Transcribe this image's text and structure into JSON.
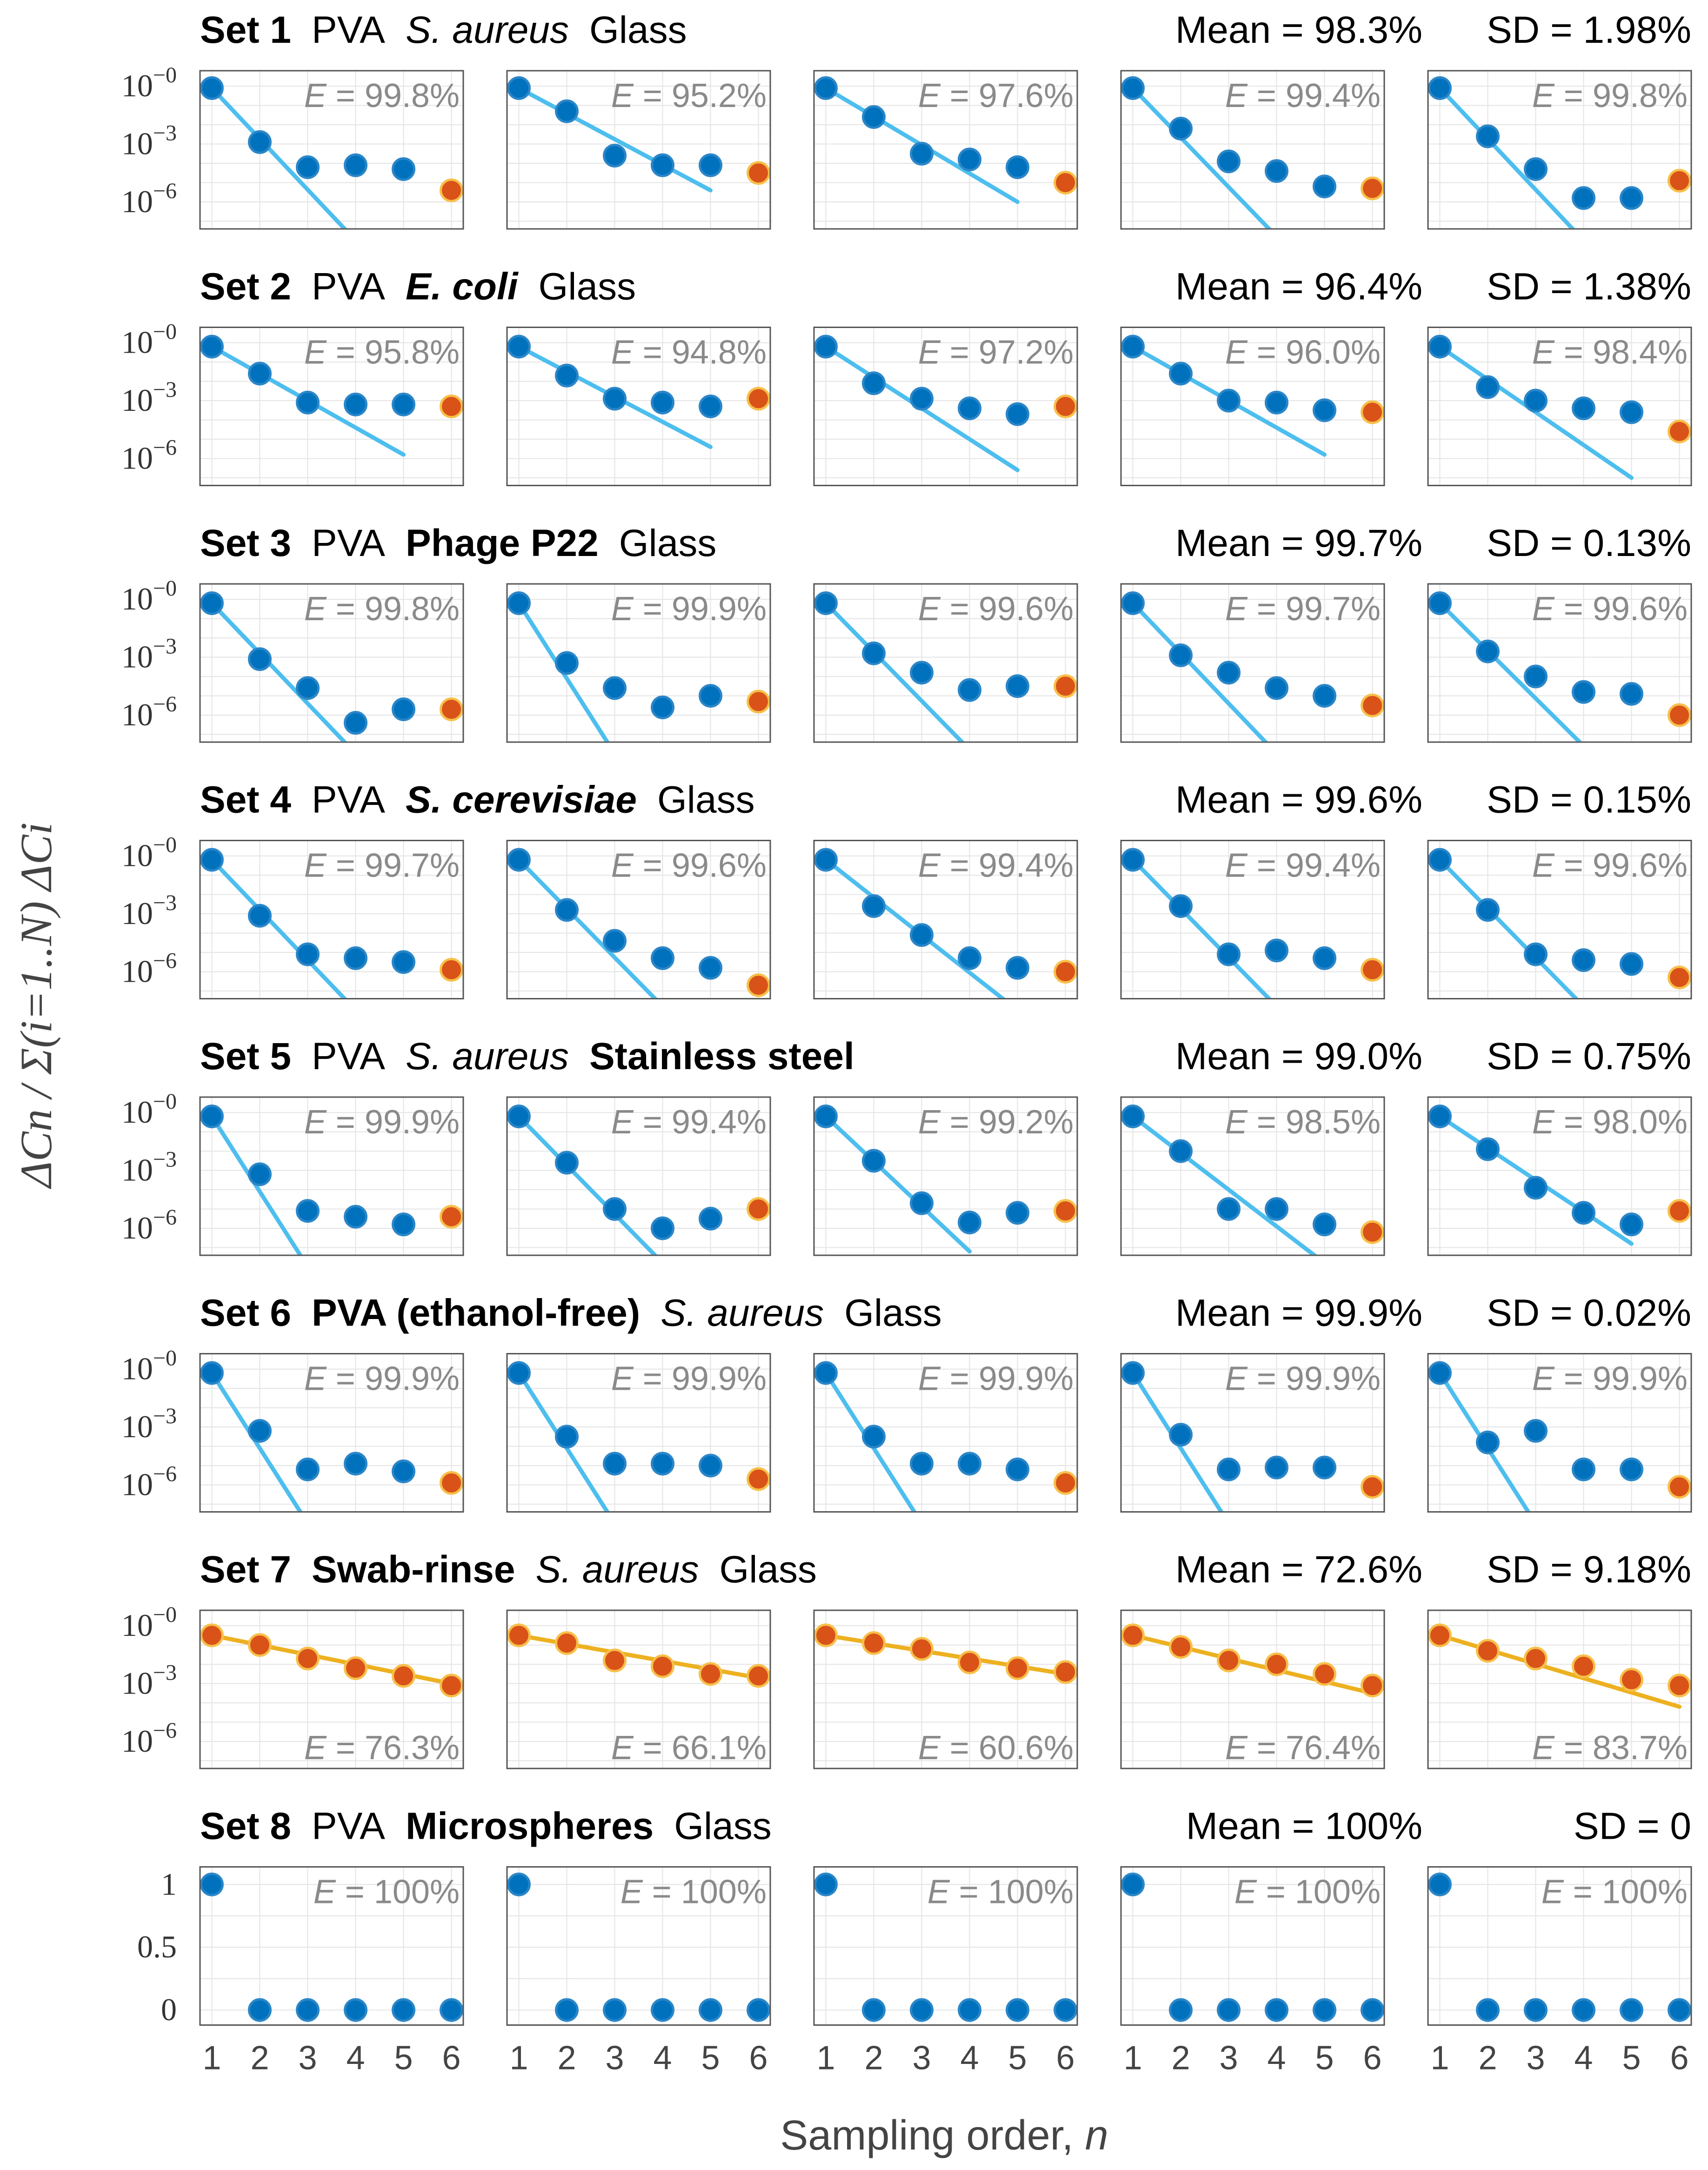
{
  "chart_data": {
    "type": "scatter",
    "figure_ylabel": "ΔCn / Σ(i=1..N) ΔCi",
    "xlabel_prefix": "Sampling order, ",
    "xlabel_var": "n",
    "x": [
      1,
      2,
      3,
      4,
      5,
      6
    ],
    "x_tick_labels": [
      "1",
      "2",
      "3",
      "4",
      "5",
      "6"
    ],
    "log_tick_labels": [
      "10−0",
      "10−3",
      "10−6"
    ],
    "linear_tick_labels": [
      "1",
      "0.5",
      "0"
    ],
    "efficiency_prefix": "E",
    "efficiency_separator": " = ",
    "colors": {
      "sampled": "#0072bd",
      "residual": "#d95319",
      "fit_pva": "#4dbeee",
      "fit_swab": "#edb120"
    },
    "sets": [
      {
        "set_label": "Set 1",
        "swab": "PVA",
        "organism": "S. aureus",
        "surface": "Glass",
        "bold_field": "set",
        "italic_field": "organism",
        "mean_text": "Mean = 98.3%",
        "sd_text": "SD = 1.98%",
        "scale": "log",
        "fit_color": "pva",
        "e_position": "top",
        "panels": [
          {
            "e": "99.8%",
            "log10_values": [
              -0.1,
              -2.9,
              -4.2,
              -4.1,
              -4.3,
              -5.4
            ],
            "fit": [
              [
                1,
                -0.1
              ],
              [
                4,
                -8.0
              ]
            ]
          },
          {
            "e": "95.2%",
            "log10_values": [
              -0.1,
              -1.3,
              -3.6,
              -4.1,
              -4.1,
              -4.5
            ],
            "fit": [
              [
                1,
                -0.1
              ],
              [
                5,
                -5.4
              ]
            ]
          },
          {
            "e": "97.6%",
            "log10_values": [
              -0.1,
              -1.6,
              -3.5,
              -3.8,
              -4.2,
              -5.0
            ],
            "fit": [
              [
                1,
                -0.1
              ],
              [
                5,
                -6.0
              ]
            ]
          },
          {
            "e": "99.4%",
            "log10_values": [
              -0.1,
              -2.2,
              -3.9,
              -4.4,
              -5.2,
              -5.3
            ],
            "fit": [
              [
                1,
                -0.1
              ],
              [
                4,
                -7.8
              ]
            ]
          },
          {
            "e": "99.8%",
            "log10_values": [
              -0.1,
              -2.6,
              -4.3,
              -5.8,
              -5.8,
              -4.9
            ],
            "fit": [
              [
                1,
                -0.1
              ],
              [
                4,
                -8.0
              ]
            ]
          }
        ]
      },
      {
        "set_label": "Set 2",
        "swab": "PVA",
        "organism": "E. coli",
        "surface": "Glass",
        "bold_field": "set",
        "italic_field": "organism",
        "bold_organism": true,
        "mean_text": "Mean = 96.4%",
        "sd_text": "SD = 1.38%",
        "scale": "log",
        "fit_color": "pva",
        "e_position": "top",
        "panels": [
          {
            "e": "95.8%",
            "log10_values": [
              -0.2,
              -1.6,
              -3.1,
              -3.2,
              -3.2,
              -3.3
            ],
            "fit": [
              [
                1,
                -0.2
              ],
              [
                5,
                -5.8
              ]
            ]
          },
          {
            "e": "94.8%",
            "log10_values": [
              -0.2,
              -1.7,
              -2.9,
              -3.1,
              -3.3,
              -2.9
            ],
            "fit": [
              [
                1,
                -0.2
              ],
              [
                5,
                -5.4
              ]
            ]
          },
          {
            "e": "97.2%",
            "log10_values": [
              -0.2,
              -2.1,
              -2.9,
              -3.4,
              -3.7,
              -3.3
            ],
            "fit": [
              [
                1,
                -0.2
              ],
              [
                5,
                -6.6
              ]
            ]
          },
          {
            "e": "96.0%",
            "log10_values": [
              -0.2,
              -1.6,
              -3.0,
              -3.1,
              -3.5,
              -3.6
            ],
            "fit": [
              [
                1,
                -0.2
              ],
              [
                5,
                -5.8
              ]
            ]
          },
          {
            "e": "98.4%",
            "log10_values": [
              -0.2,
              -2.3,
              -3.0,
              -3.4,
              -3.6,
              -4.6
            ],
            "fit": [
              [
                1,
                -0.2
              ],
              [
                5,
                -7.0
              ]
            ]
          }
        ]
      },
      {
        "set_label": "Set 3",
        "swab": "PVA",
        "organism": "Phage P22",
        "surface": "Glass",
        "bold_field": "organism",
        "italic_field": "",
        "mean_text": "Mean = 99.7%",
        "sd_text": "SD = 0.13%",
        "scale": "log",
        "fit_color": "pva",
        "e_position": "top",
        "panels": [
          {
            "e": "99.8%",
            "log10_values": [
              -0.2,
              -3.1,
              -4.6,
              -6.4,
              -5.7,
              -5.7
            ],
            "fit": [
              [
                1,
                -0.2
              ],
              [
                4,
                -8.0
              ]
            ]
          },
          {
            "e": "99.9%",
            "log10_values": [
              -0.2,
              -3.3,
              -4.6,
              -5.6,
              -5.0,
              -5.3
            ],
            "fit": [
              [
                1,
                -0.2
              ],
              [
                3,
                -8.0
              ]
            ]
          },
          {
            "e": "99.6%",
            "log10_values": [
              -0.2,
              -2.8,
              -3.8,
              -4.7,
              -4.5,
              -4.5
            ],
            "fit": [
              [
                1,
                -0.2
              ],
              [
                4,
                -7.8
              ]
            ]
          },
          {
            "e": "99.7%",
            "log10_values": [
              -0.2,
              -2.9,
              -3.8,
              -4.6,
              -5.0,
              -5.5
            ],
            "fit": [
              [
                1,
                -0.2
              ],
              [
                4,
                -8.0
              ]
            ]
          },
          {
            "e": "99.6%",
            "log10_values": [
              -0.2,
              -2.7,
              -4.0,
              -4.8,
              -4.9,
              -6.0
            ],
            "fit": [
              [
                1,
                -0.2
              ],
              [
                4,
                -7.6
              ]
            ]
          }
        ]
      },
      {
        "set_label": "Set 4",
        "swab": "PVA",
        "organism": "S. cerevisiae",
        "surface": "Glass",
        "bold_field": "set",
        "italic_field": "organism",
        "bold_organism": true,
        "mean_text": "Mean = 99.6%",
        "sd_text": "SD = 0.15%",
        "scale": "log",
        "fit_color": "pva",
        "e_position": "top",
        "panels": [
          {
            "e": "99.7%",
            "log10_values": [
              -0.2,
              -3.1,
              -5.1,
              -5.3,
              -5.5,
              -5.9
            ],
            "fit": [
              [
                1,
                -0.2
              ],
              [
                4,
                -8.0
              ]
            ]
          },
          {
            "e": "99.6%",
            "log10_values": [
              -0.2,
              -2.8,
              -4.4,
              -5.3,
              -5.8,
              -6.7
            ],
            "fit": [
              [
                1,
                -0.2
              ],
              [
                4,
                -7.8
              ]
            ]
          },
          {
            "e": "99.4%",
            "log10_values": [
              -0.2,
              -2.6,
              -4.1,
              -5.3,
              -5.8,
              -6.0
            ],
            "fit": [
              [
                1,
                -0.2
              ],
              [
                5,
                -8.0
              ]
            ]
          },
          {
            "e": "99.4%",
            "log10_values": [
              -0.2,
              -2.6,
              -5.1,
              -4.9,
              -5.3,
              -5.9
            ],
            "fit": [
              [
                1,
                -0.2
              ],
              [
                4,
                -7.8
              ]
            ]
          },
          {
            "e": "99.6%",
            "log10_values": [
              -0.2,
              -2.8,
              -5.1,
              -5.4,
              -5.6,
              -6.3
            ],
            "fit": [
              [
                1,
                -0.2
              ],
              [
                4,
                -7.8
              ]
            ]
          }
        ]
      },
      {
        "set_label": "Set 5",
        "swab": "PVA",
        "organism": "S. aureus",
        "surface": "Stainless steel",
        "bold_field": "surface",
        "italic_field": "organism",
        "mean_text": "Mean = 99.0%",
        "sd_text": "SD = 0.75%",
        "scale": "log",
        "fit_color": "pva",
        "e_position": "top",
        "panels": [
          {
            "e": "99.9%",
            "log10_values": [
              -0.2,
              -3.2,
              -5.1,
              -5.4,
              -5.8,
              -5.4
            ],
            "fit": [
              [
                1,
                -0.2
              ],
              [
                3,
                -8.0
              ]
            ]
          },
          {
            "e": "99.4%",
            "log10_values": [
              -0.2,
              -2.6,
              -5.0,
              -6.0,
              -5.5,
              -5.0
            ],
            "fit": [
              [
                1,
                -0.2
              ],
              [
                4,
                -7.8
              ]
            ]
          },
          {
            "e": "99.2%",
            "log10_values": [
              -0.2,
              -2.5,
              -4.7,
              -5.7,
              -5.2,
              -5.1
            ],
            "fit": [
              [
                1,
                -0.2
              ],
              [
                4,
                -7.2
              ]
            ]
          },
          {
            "e": "98.5%",
            "log10_values": [
              -0.2,
              -2.0,
              -5.0,
              -5.0,
              -5.8,
              -6.2
            ],
            "fit": [
              [
                1,
                -0.2
              ],
              [
                5,
                -7.8
              ]
            ]
          },
          {
            "e": "98.0%",
            "log10_values": [
              -0.2,
              -1.9,
              -3.9,
              -5.2,
              -5.8,
              -5.1
            ],
            "fit": [
              [
                1,
                -0.2
              ],
              [
                5,
                -6.8
              ]
            ]
          }
        ]
      },
      {
        "set_label": "Set 6",
        "swab": "PVA (ethanol-free)",
        "organism": "S. aureus",
        "surface": "Glass",
        "bold_field": "swab",
        "italic_field": "organism",
        "mean_text": "Mean = 99.9%",
        "sd_text": "SD = 0.02%",
        "scale": "log",
        "fit_color": "pva",
        "e_position": "top",
        "panels": [
          {
            "e": "99.9%",
            "log10_values": [
              -0.2,
              -3.2,
              -5.2,
              -4.9,
              -5.3,
              -5.9
            ],
            "fit": [
              [
                1,
                -0.2
              ],
              [
                3,
                -8.0
              ]
            ]
          },
          {
            "e": "99.9%",
            "log10_values": [
              -0.2,
              -3.5,
              -4.9,
              -4.9,
              -5.0,
              -5.7
            ],
            "fit": [
              [
                1,
                -0.2
              ],
              [
                3,
                -8.0
              ]
            ]
          },
          {
            "e": "99.9%",
            "log10_values": [
              -0.2,
              -3.5,
              -4.9,
              -4.9,
              -5.2,
              -5.9
            ],
            "fit": [
              [
                1,
                -0.2
              ],
              [
                3,
                -8.0
              ]
            ]
          },
          {
            "e": "99.9%",
            "log10_values": [
              -0.2,
              -3.4,
              -5.2,
              -5.1,
              -5.1,
              -6.1
            ],
            "fit": [
              [
                1,
                -0.2
              ],
              [
                3,
                -8.0
              ]
            ]
          },
          {
            "e": "99.9%",
            "log10_values": [
              -0.2,
              -3.8,
              -3.2,
              -5.2,
              -5.2,
              -6.1
            ],
            "fit": [
              [
                1,
                -0.2
              ],
              [
                3,
                -8.0
              ]
            ]
          }
        ]
      },
      {
        "set_label": "Set 7",
        "swab": "Swab-rinse",
        "organism": "S. aureus",
        "surface": "Glass",
        "bold_field": "swab",
        "italic_field": "organism",
        "mean_text": "Mean = 72.6%",
        "sd_text": "SD = 9.18%",
        "scale": "log",
        "fit_color": "swab",
        "e_position": "bottom",
        "panels": [
          {
            "e": "76.3%",
            "log10_values": [
              -0.5,
              -1.0,
              -1.7,
              -2.2,
              -2.6,
              -3.1
            ],
            "fit": [
              [
                1,
                -0.5
              ],
              [
                6,
                -3.0
              ]
            ]
          },
          {
            "e": "66.1%",
            "log10_values": [
              -0.5,
              -0.9,
              -1.8,
              -2.1,
              -2.5,
              -2.6
            ],
            "fit": [
              [
                1,
                -0.5
              ],
              [
                6,
                -2.7
              ]
            ]
          },
          {
            "e": "60.6%",
            "log10_values": [
              -0.5,
              -0.9,
              -1.2,
              -1.9,
              -2.2,
              -2.4
            ],
            "fit": [
              [
                1,
                -0.5
              ],
              [
                6,
                -2.5
              ]
            ]
          },
          {
            "e": "76.4%",
            "log10_values": [
              -0.5,
              -1.1,
              -1.8,
              -2.0,
              -2.5,
              -3.1
            ],
            "fit": [
              [
                1,
                -0.5
              ],
              [
                6,
                -3.5
              ]
            ]
          },
          {
            "e": "83.7%",
            "log10_values": [
              -0.5,
              -1.3,
              -1.7,
              -2.1,
              -2.8,
              -3.1
            ],
            "fit": [
              [
                1,
                -0.5
              ],
              [
                6,
                -4.2
              ]
            ]
          }
        ]
      },
      {
        "set_label": "Set 8",
        "swab": "PVA",
        "organism": "Microspheres",
        "surface": "Glass",
        "bold_field": "organism",
        "italic_field": "",
        "mean_text": "Mean = 100%",
        "sd_text": "SD = 0",
        "scale": "linear",
        "fit_color": "none",
        "e_position": "top",
        "panels": [
          {
            "e": "100%",
            "values": [
              1,
              0,
              0,
              0,
              0,
              0
            ]
          },
          {
            "e": "100%",
            "values": [
              1,
              0,
              0,
              0,
              0,
              0
            ]
          },
          {
            "e": "100%",
            "values": [
              1,
              0,
              0,
              0,
              0,
              0
            ]
          },
          {
            "e": "100%",
            "values": [
              1,
              0,
              0,
              0,
              0,
              0
            ]
          },
          {
            "e": "100%",
            "values": [
              1,
              0,
              0,
              0,
              0,
              0
            ]
          }
        ]
      }
    ]
  }
}
